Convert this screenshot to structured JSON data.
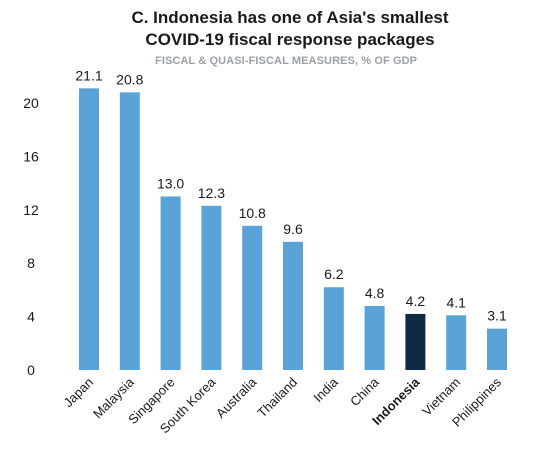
{
  "chart_data": {
    "type": "bar",
    "title_line1": "C. Indonesia has one of Asia's smallest",
    "title_line2": "COVID-19 fiscal response packages",
    "subtitle": "FISCAL & QUASI-FISCAL MEASURES, % OF GDP",
    "categories": [
      "Japan",
      "Malaysia",
      "Singapore",
      "South Korea",
      "Australia",
      "Thailand",
      "India",
      "China",
      "Indonesia",
      "Vietnam",
      "Philippines"
    ],
    "values": [
      21.1,
      20.8,
      13.0,
      12.3,
      10.8,
      9.6,
      6.2,
      4.8,
      4.2,
      4.1,
      3.1
    ],
    "value_labels": [
      "21.1",
      "20.8",
      "13.0",
      "12.3",
      "10.8",
      "9.6",
      "6.2",
      "4.8",
      "4.2",
      "4.1",
      "3.1"
    ],
    "highlight": "Indonesia",
    "ylim": [
      0,
      21
    ],
    "yticks": [
      0,
      4,
      8,
      12,
      16,
      20
    ],
    "colors": {
      "bar": "#5aa3d8",
      "highlight": "#0d2b45",
      "text": "#1a1a1a"
    },
    "grid": false,
    "legend": "none"
  }
}
